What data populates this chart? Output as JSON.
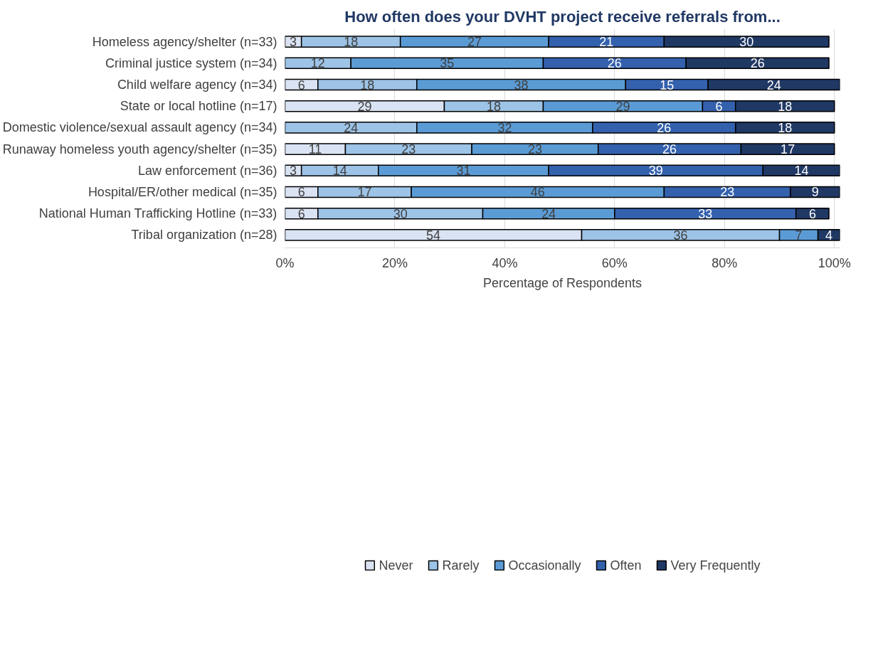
{
  "chart_data": {
    "type": "bar",
    "orientation": "horizontal",
    "stacked": true,
    "title": "How often does your DVHT project receive referrals from...",
    "xlabel": "Percentage of Respondents",
    "categories": [
      "Homeless agency/shelter (n=33)",
      "Criminal justice system (n=34)",
      "Child welfare agency (n=34)",
      "State or local hotline (n=17)",
      "Domestic violence/sexual assault agency (n=34)",
      "Runaway homeless youth agency/shelter (n=35)",
      "Law enforcement (n=36)",
      "Hospital/ER/other medical (n=35)",
      "National Human Trafficking Hotline (n=33)",
      "Tribal organization (n=28)"
    ],
    "series": [
      {
        "name": "Never",
        "color": "#dae3f3",
        "values": [
          3,
          null,
          6,
          29,
          null,
          11,
          3,
          6,
          6,
          54
        ]
      },
      {
        "name": "Rarely",
        "color": "#9dc3e6",
        "values": [
          18,
          12,
          18,
          18,
          24,
          23,
          14,
          17,
          30,
          36
        ]
      },
      {
        "name": "Occasionally",
        "color": "#5b9bd5",
        "values": [
          27,
          35,
          38,
          29,
          32,
          23,
          31,
          46,
          24,
          7
        ]
      },
      {
        "name": "Often",
        "color": "#3461ad",
        "values": [
          21,
          26,
          15,
          6,
          26,
          26,
          39,
          23,
          33,
          null
        ]
      },
      {
        "name": "Very Frequently",
        "color": "#203864",
        "values": [
          30,
          26,
          24,
          18,
          18,
          17,
          14,
          9,
          6,
          4
        ]
      }
    ],
    "xlim": [
      0,
      101
    ],
    "xticks": [
      {
        "value": 0,
        "label": "0%"
      },
      {
        "value": 20,
        "label": "20%"
      },
      {
        "value": 40,
        "label": "40%"
      },
      {
        "value": 60,
        "label": "60%"
      },
      {
        "value": 80,
        "label": "80%"
      },
      {
        "value": 100,
        "label": "100%"
      }
    ],
    "grid": "x",
    "legend": "bottom",
    "data_labels": true
  }
}
